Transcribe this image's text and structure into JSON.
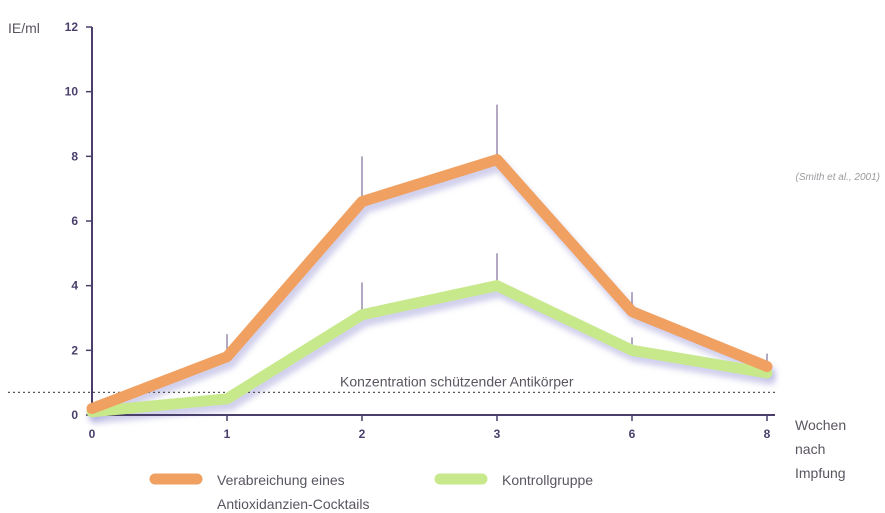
{
  "chart_data": {
    "type": "line",
    "ylabel": "IE/ml",
    "xlabel": [
      "Wochen",
      "nach",
      "Impfung"
    ],
    "categories": [
      "0",
      "1",
      "2",
      "3",
      "6",
      "8"
    ],
    "ylim": [
      0,
      12
    ],
    "yticks": [
      "0",
      "2",
      "4",
      "6",
      "8",
      "10",
      "12"
    ],
    "grid": false,
    "reference_line": {
      "value": 0.7,
      "label": "Konzentration schützender Antikörper"
    },
    "source": "(Smith et al., 2001)",
    "series": [
      {
        "name": "Verabreichung eines Antioxidanzien-Cocktails",
        "name_lines": [
          "Verabreichung eines",
          "Antioxidanzien-Cocktails"
        ],
        "color": "#f0a060",
        "values": [
          0.2,
          1.8,
          6.6,
          7.9,
          3.2,
          1.5
        ],
        "error_upper": [
          null,
          2.5,
          8.0,
          9.6,
          3.8,
          1.9
        ]
      },
      {
        "name": "Kontrollgruppe",
        "name_lines": [
          "Kontrollgruppe"
        ],
        "color": "#c8e88c",
        "values": [
          0.1,
          0.5,
          3.1,
          4.0,
          2.0,
          1.3
        ],
        "error_upper": [
          null,
          null,
          4.1,
          5.0,
          2.4,
          null
        ]
      }
    ],
    "legend_position": "bottom"
  }
}
